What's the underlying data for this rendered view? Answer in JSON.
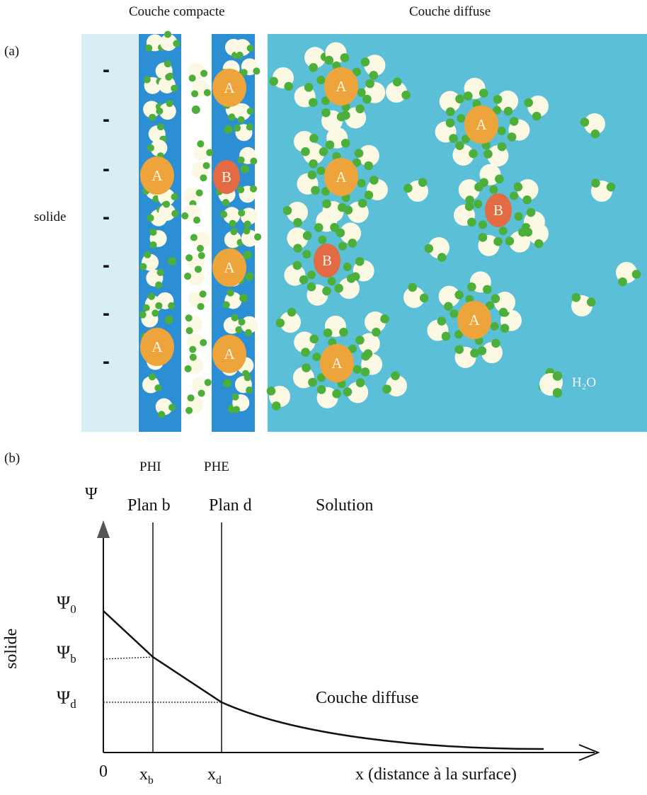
{
  "panel_a": {
    "label": "(a)",
    "header_compact": "Couche compacte",
    "header_diffuse": "Couche diffuse",
    "solid_label": "solide",
    "minus_sign": "-",
    "ion_a": "A",
    "ion_b": "B",
    "water_label": "H₂O",
    "colors": {
      "solid": "#d7eef4",
      "stern_band": "#2c8fd3",
      "diffuse_bg": "#5bbfd8",
      "water": "#fbf8e4",
      "hydrogen": "#4caf3a",
      "cation_a": "#eda43b",
      "cation_b": "#e26b43"
    }
  },
  "panel_b": {
    "label": "(b)",
    "phi_label": "PHI",
    "phe_label": "PHE",
    "psi_axis": "Ψ",
    "plan_b": "Plan b",
    "plan_d": "Plan d",
    "solution": "Solution",
    "psi0": "Ψ",
    "psi0_sub": "0",
    "psib": "Ψ",
    "psib_sub": "b",
    "psid": "Ψ",
    "psid_sub": "d",
    "solid_vertical": "solide",
    "couche_diffuse": "Couche diffuse",
    "origin": "0",
    "xb": "x",
    "xb_sub": "b",
    "xd": "x",
    "xd_sub": "d",
    "x_axis": "x (distance à la surface)"
  }
}
